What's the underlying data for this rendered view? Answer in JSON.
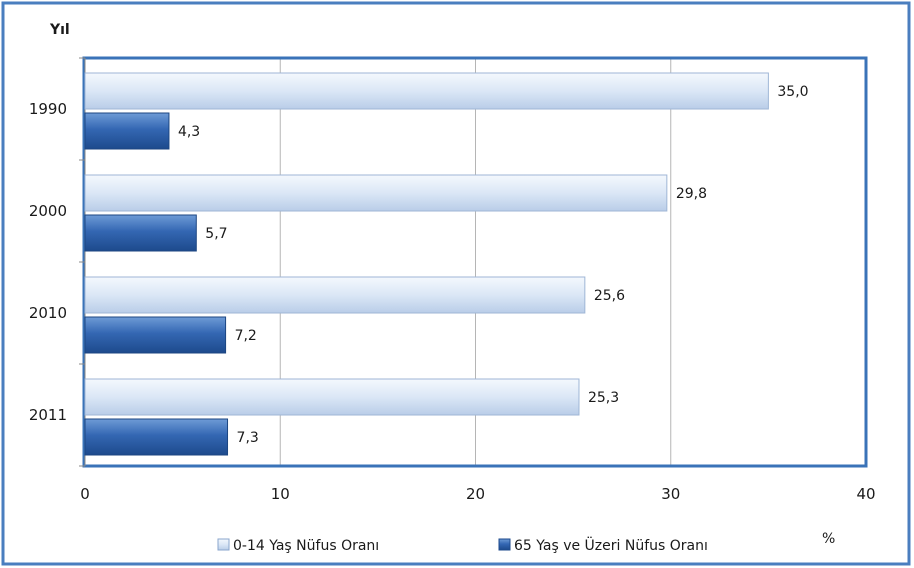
{
  "chart_data": {
    "type": "bar",
    "orientation": "horizontal",
    "ylabel": "Yıl",
    "xlabel": "%",
    "categories": [
      "1990",
      "2000",
      "2010",
      "2011"
    ],
    "xlim": [
      0,
      40
    ],
    "xticks": [
      "0",
      "10",
      "20",
      "30",
      "40"
    ],
    "grid": true,
    "legend_position": "bottom",
    "series": [
      {
        "name": "0-14 Yaş Nüfus Oranı",
        "values": [
          35.0,
          29.8,
          25.6,
          25.3
        ],
        "labels": [
          "35,0",
          "29,8",
          "25,6",
          "25,3"
        ],
        "color": "#d6e4f5"
      },
      {
        "name": "65 Yaş ve Üzeri Nüfus Oranı",
        "values": [
          4.3,
          5.7,
          7.2,
          7.3
        ],
        "labels": [
          "4,3",
          "5,7",
          "7,2",
          "7,3"
        ],
        "color": "#2e66b0"
      }
    ],
    "frame_color": "#3a73b8"
  }
}
